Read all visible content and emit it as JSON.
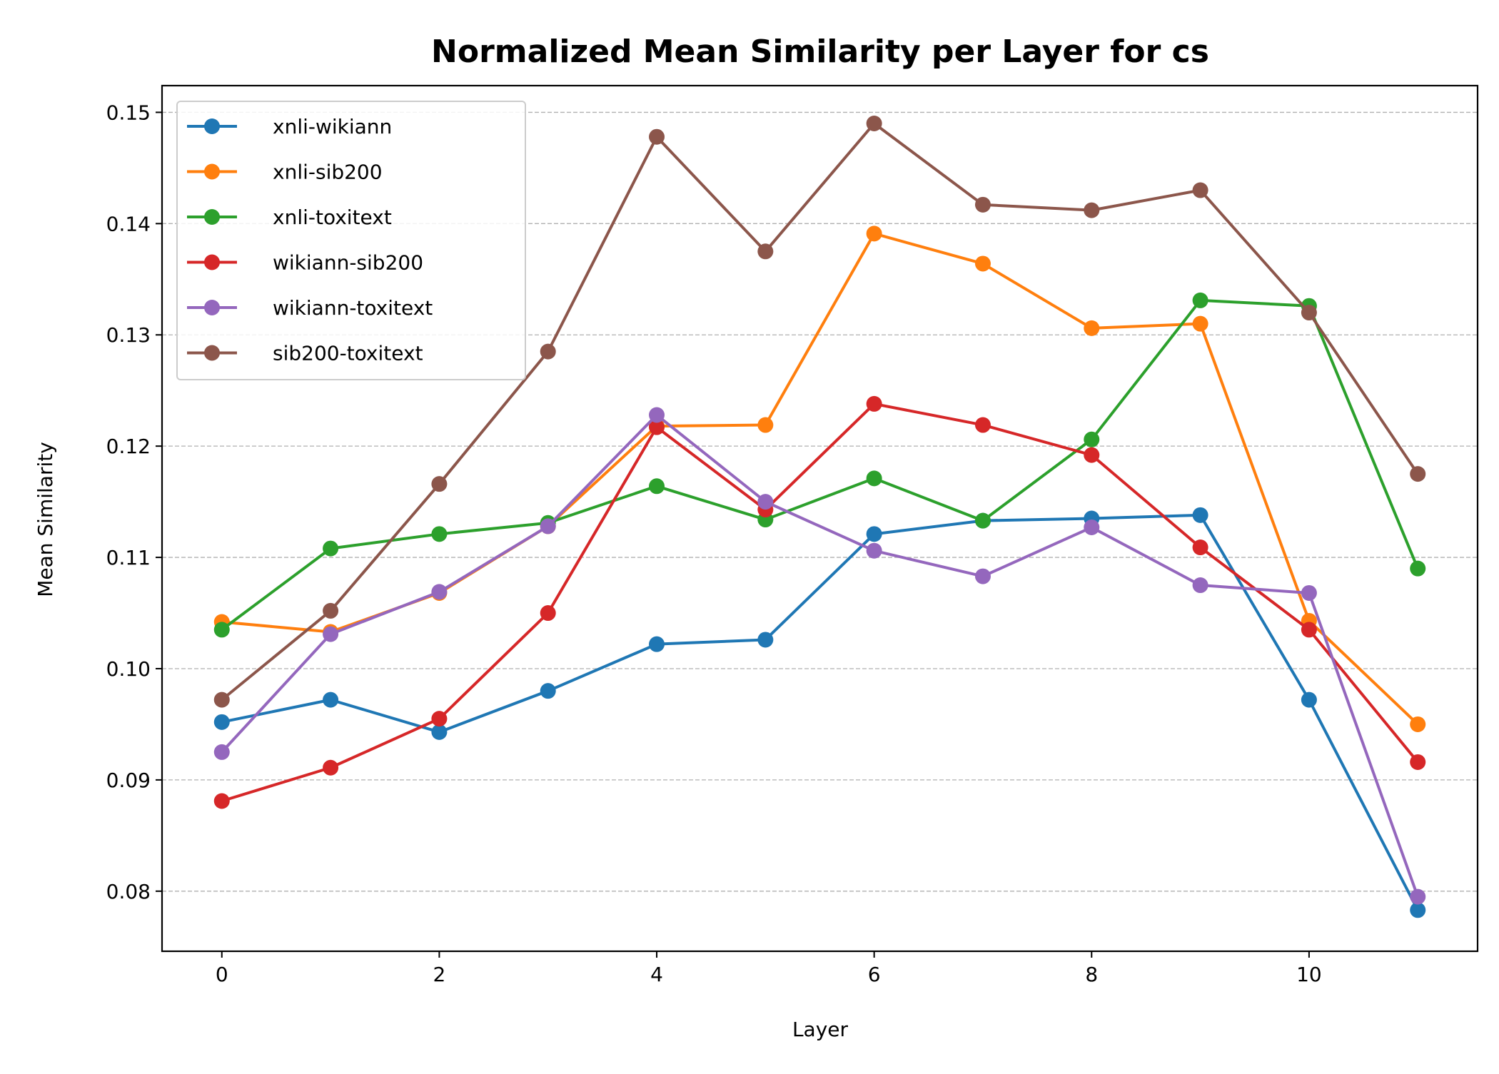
{
  "chart_data": {
    "type": "line",
    "title": "Normalized Mean Similarity per Layer for cs",
    "xlabel": "Layer",
    "ylabel": "Mean Similarity",
    "x": [
      0,
      1,
      2,
      3,
      4,
      5,
      6,
      7,
      8,
      9,
      10,
      11
    ],
    "xlim": [
      -0.55,
      11.55
    ],
    "ylim": [
      0.0746,
      0.1524
    ],
    "xticks": [
      0,
      2,
      4,
      6,
      8,
      10
    ],
    "xtick_labels": [
      "0",
      "2",
      "4",
      "6",
      "8",
      "10"
    ],
    "yticks": [
      0.08,
      0.09,
      0.1,
      0.11,
      0.12,
      0.13,
      0.14,
      0.15
    ],
    "ytick_labels": [
      "0.08",
      "0.09",
      "0.10",
      "0.11",
      "0.12",
      "0.13",
      "0.14",
      "0.15"
    ],
    "grid": "y-dashed",
    "legend_position": "upper-left",
    "series": [
      {
        "name": "xnli-wikiann",
        "color": "#1f77b4",
        "values": [
          0.0952,
          0.0972,
          0.0943,
          0.098,
          0.1022,
          0.1026,
          0.1121,
          0.1133,
          0.1135,
          0.1138,
          0.0972,
          0.0783
        ]
      },
      {
        "name": "xnli-sib200",
        "color": "#ff7f0e",
        "values": [
          0.1042,
          0.1033,
          0.1068,
          0.1128,
          0.1218,
          0.1219,
          0.1391,
          0.1364,
          0.1306,
          0.131,
          0.1043,
          0.095
        ]
      },
      {
        "name": "xnli-toxitext",
        "color": "#2ca02c",
        "values": [
          0.1035,
          0.1108,
          0.1121,
          0.1131,
          0.1164,
          0.1134,
          0.1171,
          0.1133,
          0.1206,
          0.1331,
          0.1326,
          0.109
        ]
      },
      {
        "name": "wikiann-sib200",
        "color": "#d62728",
        "values": [
          0.0881,
          0.0911,
          0.0955,
          0.105,
          0.1217,
          0.1143,
          0.1238,
          0.1219,
          0.1192,
          0.1109,
          0.1035,
          0.0916
        ]
      },
      {
        "name": "wikiann-toxitext",
        "color": "#9467bd",
        "values": [
          0.0925,
          0.1031,
          0.1069,
          0.1128,
          0.1228,
          0.115,
          0.1106,
          0.1083,
          0.1127,
          0.1075,
          0.1068,
          0.0795
        ]
      },
      {
        "name": "sib200-toxitext",
        "color": "#8c564b",
        "values": [
          0.0972,
          0.1052,
          0.1166,
          0.1285,
          0.1478,
          0.1375,
          0.149,
          0.1417,
          0.1412,
          0.143,
          0.132,
          0.1175
        ]
      }
    ]
  }
}
